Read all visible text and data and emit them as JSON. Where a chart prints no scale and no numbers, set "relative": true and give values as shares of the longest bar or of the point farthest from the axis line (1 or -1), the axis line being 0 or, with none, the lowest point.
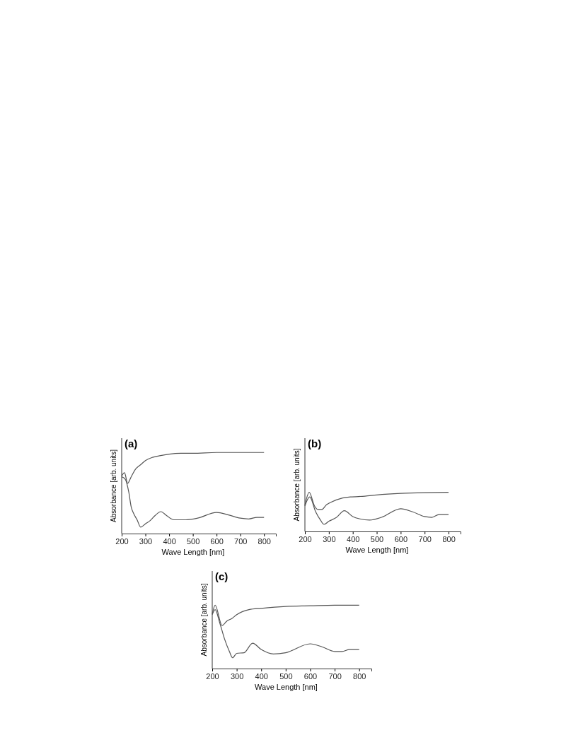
{
  "chart_data": [
    {
      "type": "line",
      "title": "(a)",
      "xlabel": "Wave Length [nm]",
      "ylabel": "Absorbance [arb. units]",
      "relative": true,
      "xlim": [
        200,
        850
      ],
      "xticks": [
        200,
        300,
        400,
        500,
        600,
        700,
        800
      ],
      "tick_labels": "x",
      "grid": false,
      "marker": "none",
      "line_style": "solid",
      "series": [
        {
          "color": "#555555",
          "x": [
            200,
            212,
            225,
            240,
            260,
            280,
            300,
            330,
            360,
            400,
            450,
            500,
            600,
            700,
            800
          ],
          "values": [
            0.71,
            0.75,
            0.62,
            0.7,
            0.8,
            0.85,
            0.9,
            0.94,
            0.96,
            0.98,
            0.99,
            0.99,
            1,
            1,
            1
          ]
        },
        {
          "color": "#555555",
          "x": [
            200,
            215,
            230,
            240,
            250,
            265,
            280,
            300,
            320,
            340,
            365,
            390,
            420,
            470,
            520,
            600,
            650,
            700,
            735,
            770,
            800
          ],
          "values": [
            0.7,
            0.67,
            0.51,
            0.33,
            0.25,
            0.17,
            0.08,
            0.12,
            0.16,
            0.22,
            0.27,
            0.22,
            0.17,
            0.17,
            0.19,
            0.26,
            0.23,
            0.19,
            0.18,
            0.2,
            0.2
          ]
        }
      ]
    },
    {
      "type": "line",
      "title": "(b)",
      "xlabel": "Wave Length [nm]",
      "ylabel": "Absorbance [arb. units]",
      "relative": true,
      "xlim": [
        200,
        850
      ],
      "xticks": [
        200,
        300,
        400,
        500,
        600,
        700,
        800
      ],
      "tick_labels": "x",
      "grid": false,
      "marker": "none",
      "line_style": "solid",
      "series": [
        {
          "color": "#555555",
          "x": [
            200,
            218,
            240,
            255,
            270,
            290,
            310,
            350,
            390,
            450,
            500,
            600,
            700,
            800
          ],
          "values": [
            0.67,
            1,
            0.65,
            0.56,
            0.56,
            0.68,
            0.75,
            0.84,
            0.88,
            0.9,
            0.93,
            0.97,
            0.99,
            1
          ]
        },
        {
          "color": "#555555",
          "x": [
            200,
            220,
            245,
            265,
            280,
            300,
            330,
            365,
            400,
            430,
            470,
            520,
            600,
            650,
            700,
            730,
            760,
            800
          ],
          "values": [
            0.65,
            0.88,
            0.5,
            0.29,
            0.18,
            0.26,
            0.35,
            0.53,
            0.38,
            0.32,
            0.29,
            0.36,
            0.58,
            0.5,
            0.38,
            0.36,
            0.43,
            0.43
          ]
        }
      ]
    },
    {
      "type": "line",
      "title": "(c)",
      "xlabel": "Wave Length [nm]",
      "ylabel": "Absorbance [arb. units]",
      "relative": true,
      "xlim": [
        200,
        850
      ],
      "xticks": [
        200,
        300,
        400,
        500,
        600,
        700,
        800
      ],
      "tick_labels": "x",
      "grid": false,
      "marker": "none",
      "line_style": "solid",
      "series": [
        {
          "color": "#555555",
          "x": [
            200,
            212,
            240,
            260,
            280,
            300,
            350,
            400,
            500,
            600,
            700,
            800
          ],
          "values": [
            0.86,
            1,
            0.68,
            0.75,
            0.79,
            0.85,
            0.93,
            0.95,
            0.98,
            0.99,
            1,
            1
          ]
        },
        {
          "color": "#555555",
          "x": [
            200,
            212,
            230,
            250,
            270,
            283,
            300,
            330,
            365,
            400,
            450,
            500,
            600,
            650,
            700,
            730,
            760,
            800
          ],
          "values": [
            0.85,
            0.93,
            0.73,
            0.47,
            0.27,
            0.17,
            0.24,
            0.25,
            0.4,
            0.3,
            0.23,
            0.25,
            0.39,
            0.34,
            0.27,
            0.27,
            0.3,
            0.3
          ]
        }
      ]
    }
  ]
}
